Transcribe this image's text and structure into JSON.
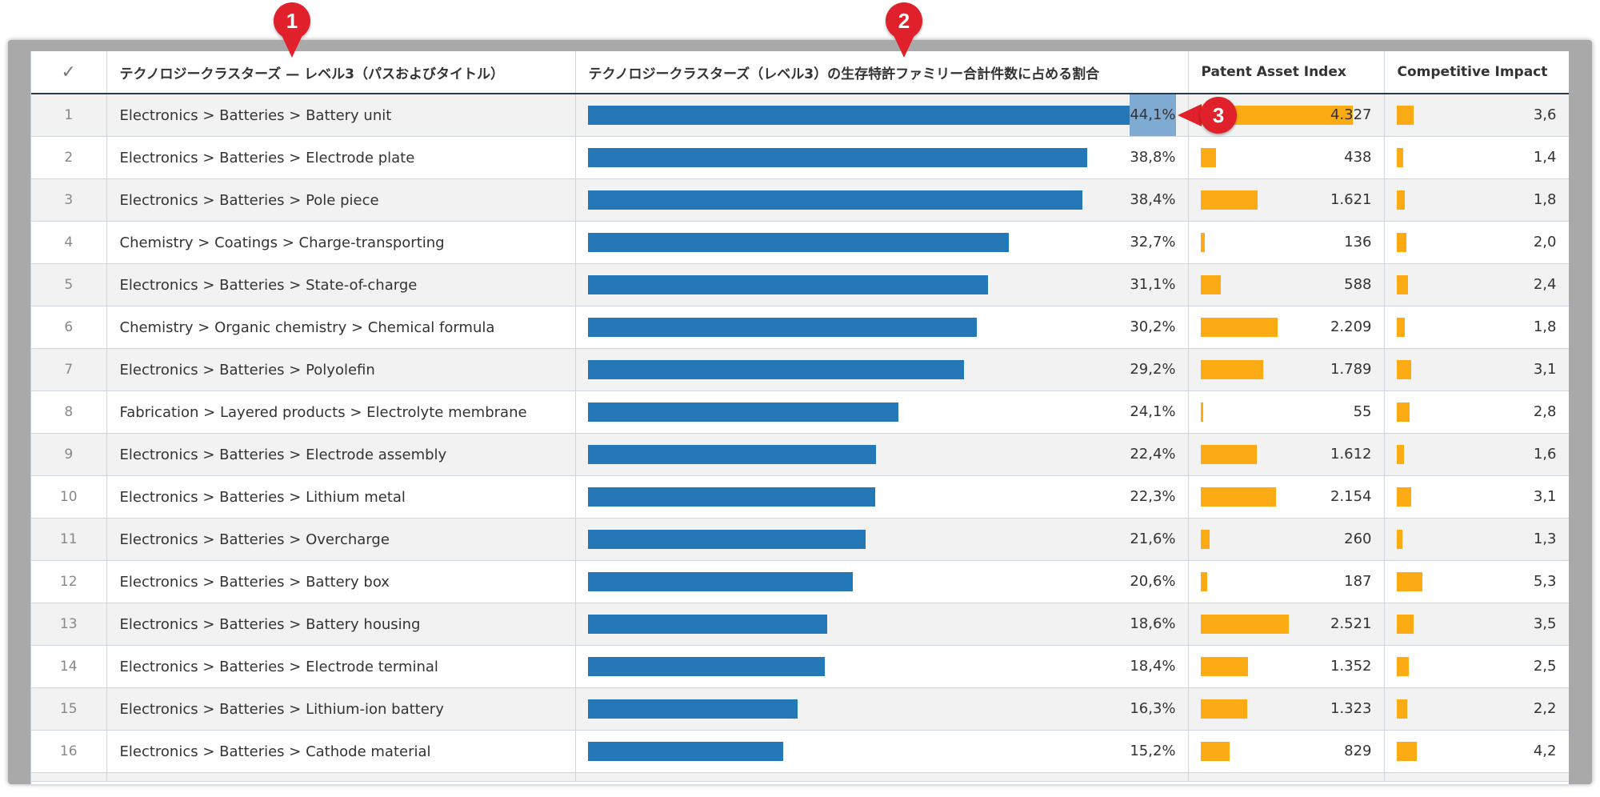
{
  "table": {
    "headers": {
      "check": "✓",
      "path": "テクノロジークラスターズ — レベル3（パスおよびタイトル）",
      "share": "テクノロジークラスターズ（レベル3）の生存特許ファミリー合計件数に占める割合",
      "pai": "Patent Asset Index",
      "ci": "Competitive Impact"
    },
    "rows": [
      {
        "n": "1",
        "path": "Electronics > Batteries > Battery unit",
        "share": "44,1%",
        "share_v": 44.1,
        "pai": "4.327",
        "pai_v": 4327,
        "ci": "3,6",
        "ci_v": 3.6
      },
      {
        "n": "2",
        "path": "Electronics > Batteries > Electrode plate",
        "share": "38,8%",
        "share_v": 38.8,
        "pai": "438",
        "pai_v": 438,
        "ci": "1,4",
        "ci_v": 1.4
      },
      {
        "n": "3",
        "path": "Electronics > Batteries > Pole piece",
        "share": "38,4%",
        "share_v": 38.4,
        "pai": "1.621",
        "pai_v": 1621,
        "ci": "1,8",
        "ci_v": 1.8
      },
      {
        "n": "4",
        "path": "Chemistry > Coatings > Charge-transporting",
        "share": "32,7%",
        "share_v": 32.7,
        "pai": "136",
        "pai_v": 136,
        "ci": "2,0",
        "ci_v": 2.0
      },
      {
        "n": "5",
        "path": "Electronics > Batteries > State-of-charge",
        "share": "31,1%",
        "share_v": 31.1,
        "pai": "588",
        "pai_v": 588,
        "ci": "2,4",
        "ci_v": 2.4
      },
      {
        "n": "6",
        "path": "Chemistry > Organic chemistry > Chemical formula",
        "share": "30,2%",
        "share_v": 30.2,
        "pai": "2.209",
        "pai_v": 2209,
        "ci": "1,8",
        "ci_v": 1.8
      },
      {
        "n": "7",
        "path": "Electronics > Batteries > Polyolefin",
        "share": "29,2%",
        "share_v": 29.2,
        "pai": "1.789",
        "pai_v": 1789,
        "ci": "3,1",
        "ci_v": 3.1
      },
      {
        "n": "8",
        "path": "Fabrication > Layered products > Electrolyte membrane",
        "share": "24,1%",
        "share_v": 24.1,
        "pai": "55",
        "pai_v": 55,
        "ci": "2,8",
        "ci_v": 2.8
      },
      {
        "n": "9",
        "path": "Electronics > Batteries > Electrode assembly",
        "share": "22,4%",
        "share_v": 22.4,
        "pai": "1.612",
        "pai_v": 1612,
        "ci": "1,6",
        "ci_v": 1.6
      },
      {
        "n": "10",
        "path": "Electronics > Batteries > Lithium metal",
        "share": "22,3%",
        "share_v": 22.3,
        "pai": "2.154",
        "pai_v": 2154,
        "ci": "3,1",
        "ci_v": 3.1
      },
      {
        "n": "11",
        "path": "Electronics > Batteries > Overcharge",
        "share": "21,6%",
        "share_v": 21.6,
        "pai": "260",
        "pai_v": 260,
        "ci": "1,3",
        "ci_v": 1.3
      },
      {
        "n": "12",
        "path": "Electronics > Batteries > Battery box",
        "share": "20,6%",
        "share_v": 20.6,
        "pai": "187",
        "pai_v": 187,
        "ci": "5,3",
        "ci_v": 5.3
      },
      {
        "n": "13",
        "path": "Electronics > Batteries > Battery housing",
        "share": "18,6%",
        "share_v": 18.6,
        "pai": "2.521",
        "pai_v": 2521,
        "ci": "3,5",
        "ci_v": 3.5
      },
      {
        "n": "14",
        "path": "Electronics > Batteries > Electrode terminal",
        "share": "18,4%",
        "share_v": 18.4,
        "pai": "1.352",
        "pai_v": 1352,
        "ci": "2,5",
        "ci_v": 2.5
      },
      {
        "n": "15",
        "path": "Electronics > Batteries > Lithium-ion battery",
        "share": "16,3%",
        "share_v": 16.3,
        "pai": "1.323",
        "pai_v": 1323,
        "ci": "2,2",
        "ci_v": 2.2
      },
      {
        "n": "16",
        "path": "Electronics > Batteries > Cathode material",
        "share": "15,2%",
        "share_v": 15.2,
        "pai": "829",
        "pai_v": 829,
        "ci": "4,2",
        "ci_v": 4.2
      }
    ]
  },
  "callouts": [
    "1",
    "2",
    "3"
  ],
  "colors": {
    "share_bar": "#2478b8",
    "pai_bar": "#fcab14",
    "ci_bar": "#fcab14",
    "callout": "#e0202a"
  }
}
